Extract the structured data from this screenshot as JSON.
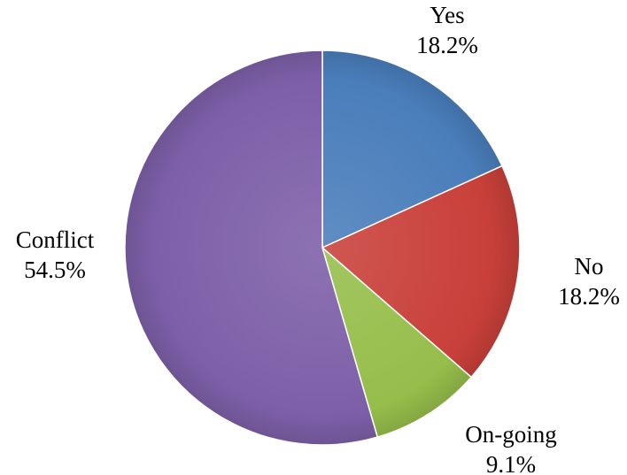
{
  "chart_data": {
    "type": "pie",
    "categories": [
      "Yes",
      "No",
      "On-going",
      "Conflict"
    ],
    "values": [
      18.2,
      18.2,
      9.1,
      54.5
    ],
    "labels": [
      "18.2%",
      "18.2%",
      "9.1%",
      "54.5%"
    ],
    "colors": [
      "#4a7ebb",
      "#c9403a",
      "#96be4b",
      "#7d5fa8"
    ],
    "title": "",
    "start_direction": "top",
    "direction": "clockwise",
    "legend": "none"
  }
}
